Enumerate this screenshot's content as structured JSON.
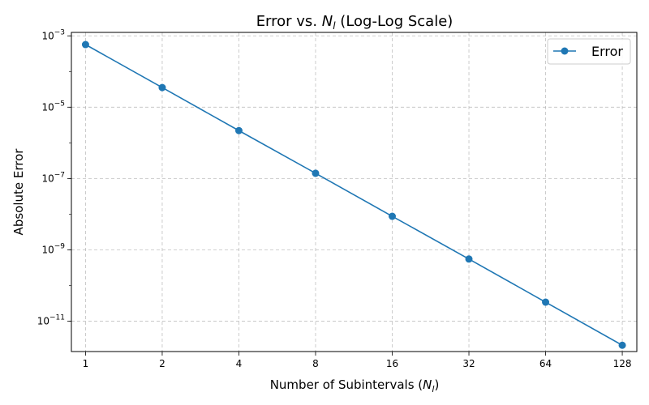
{
  "chart_data": {
    "type": "line",
    "title": "Error vs. N_l (Log-Log Scale)",
    "title_parts": {
      "prefix": "Error vs. ",
      "var": "N",
      "sub": "l",
      "suffix": " (Log-Log Scale)"
    },
    "xlabel": "Number of Subintervals (N_l)",
    "xlabel_parts": {
      "prefix": "Number of Subintervals (",
      "var": "N",
      "sub": "l",
      "suffix": ")"
    },
    "ylabel": "Absolute Error",
    "x_scale": "log2",
    "y_scale": "log10",
    "x": [
      1,
      2,
      4,
      8,
      16,
      32,
      64,
      128
    ],
    "x_tick_labels": [
      "1",
      "2",
      "4",
      "8",
      "16",
      "32",
      "64",
      "128"
    ],
    "y_ticks": [
      {
        "base": "10",
        "exp": "−3",
        "value": 0.001
      },
      {
        "base": "10",
        "exp": "−5",
        "value": 1e-05
      },
      {
        "base": "10",
        "exp": "−7",
        "value": 1e-07
      },
      {
        "base": "10",
        "exp": "−9",
        "value": 1e-09
      },
      {
        "base": "10",
        "exp": "−11",
        "value": 1e-11
      }
    ],
    "ylim": [
      1.4e-12,
      0.00125
    ],
    "xlim": [
      0.88,
      146
    ],
    "grid": true,
    "legend_position": "top-right",
    "series": [
      {
        "name": "Error",
        "color": "#1f77b4",
        "marker": "circle",
        "values": [
          0.00057,
          3.55e-05,
          2.2e-06,
          1.4e-07,
          8.7e-09,
          5.5e-10,
          3.4e-11,
          2.1e-12
        ]
      }
    ]
  }
}
